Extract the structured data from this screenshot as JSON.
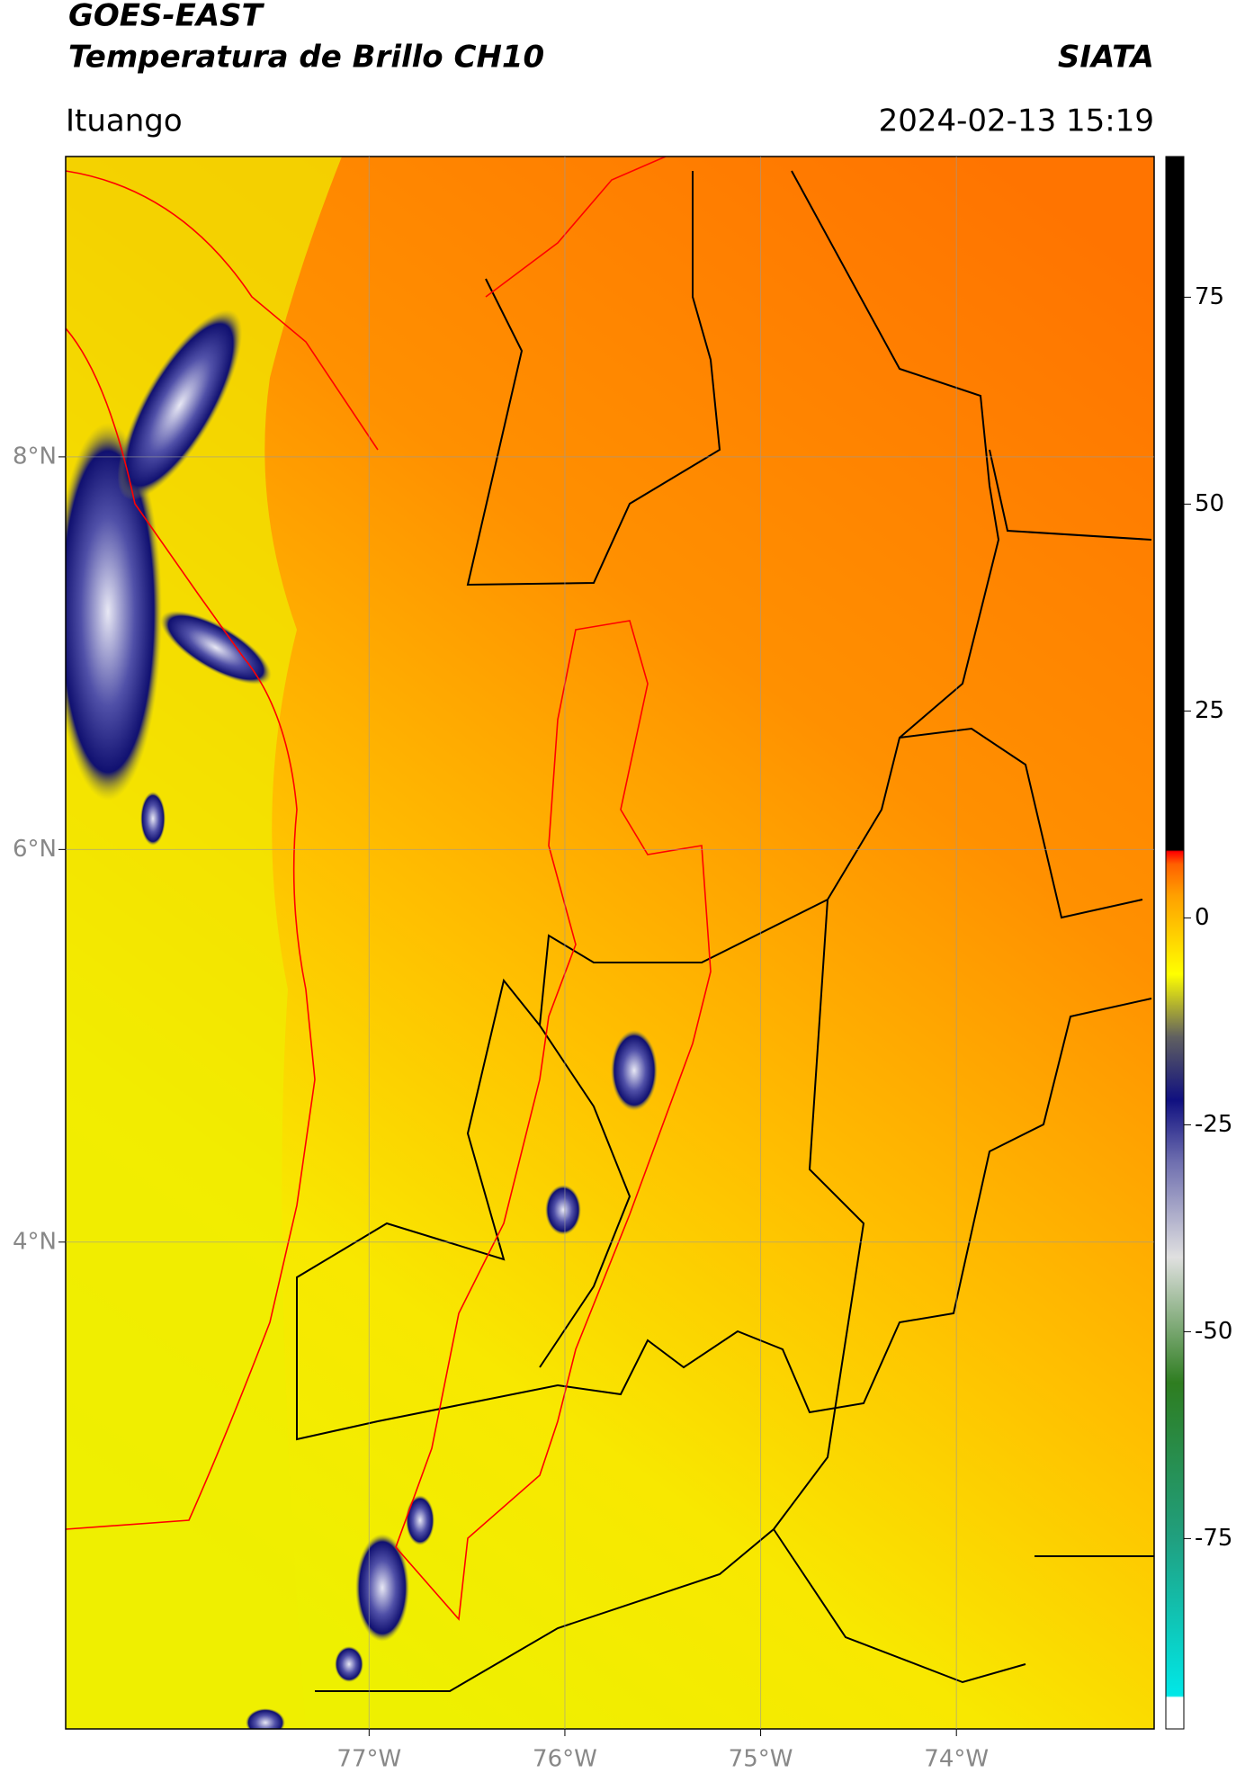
{
  "header": {
    "title": "GOES-EAST",
    "subtitle": "Temperatura de Brillo CH10",
    "brand": "SIATA",
    "location": "Ituango",
    "datetime": "2024-02-13 15:19"
  },
  "map": {
    "xlim": [
      -78.55,
      -72.99
    ],
    "ylim": [
      1.52,
      9.53
    ],
    "xticks": [
      {
        "value": -77,
        "label": "77°W"
      },
      {
        "value": -76,
        "label": "76°W"
      },
      {
        "value": -75,
        "label": "75°W"
      },
      {
        "value": -74,
        "label": "74°W"
      }
    ],
    "yticks": [
      {
        "value": 8,
        "label": "8°N"
      },
      {
        "value": 6,
        "label": "6°N"
      },
      {
        "value": 4,
        "label": "4°N"
      }
    ]
  },
  "colorbar": {
    "lim": [
      -98,
      92
    ],
    "ticks": [
      75,
      50,
      25,
      0,
      -25,
      -50,
      -75
    ]
  }
}
